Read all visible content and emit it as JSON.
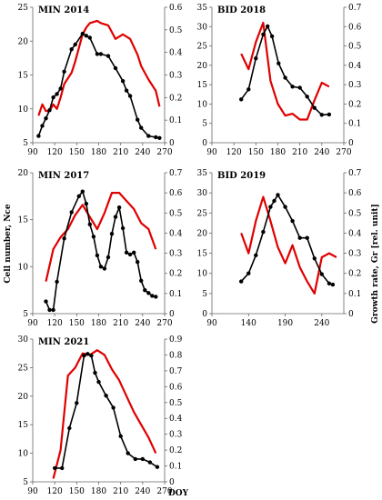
{
  "figure": {
    "y_left_label": "Cell number, Nce",
    "y_right_label": "Growth rate, Gr [rel. unit]",
    "x_label": "DOY"
  },
  "colors": {
    "cell_number": "#000000",
    "growth_rate": "#e00000"
  },
  "chart_data": [
    {
      "type": "line",
      "title": "MIN 2014",
      "xlim": [
        90,
        270
      ],
      "xticks": [
        90,
        120,
        150,
        180,
        210,
        240,
        270
      ],
      "ylim_left": [
        5,
        25
      ],
      "yticks_left": [
        5,
        10,
        15,
        20,
        25
      ],
      "ylim_right": [
        0,
        0.6
      ],
      "yticks_right": [
        0,
        0.1,
        0.2,
        0.3,
        0.4,
        0.5,
        0.6
      ],
      "series": [
        {
          "axis": "left",
          "markers": true,
          "x": [
            98,
            103,
            108,
            113,
            118,
            123,
            128,
            133,
            143,
            148,
            158,
            163,
            168,
            178,
            183,
            193,
            203,
            213,
            218,
            223,
            233,
            238,
            248,
            258,
            263
          ],
          "y": [
            6.0,
            7.5,
            8.6,
            9.8,
            11.7,
            12.2,
            13.0,
            15.5,
            18.8,
            19.5,
            21.1,
            20.8,
            20.5,
            18.1,
            18.1,
            17.8,
            16.0,
            14.1,
            12.7,
            11.9,
            8.4,
            7.2,
            6.0,
            5.8,
            5.7
          ]
        },
        {
          "axis": "right",
          "markers": false,
          "x": [
            98,
            103,
            108,
            113,
            118,
            123,
            128,
            133,
            143,
            148,
            158,
            163,
            168,
            178,
            183,
            193,
            203,
            213,
            218,
            223,
            233,
            238,
            248,
            258,
            263
          ],
          "y": [
            0.12,
            0.17,
            0.14,
            0.14,
            0.17,
            0.15,
            0.2,
            0.26,
            0.31,
            0.36,
            0.48,
            0.51,
            0.53,
            0.54,
            0.53,
            0.52,
            0.46,
            0.48,
            0.47,
            0.46,
            0.39,
            0.34,
            0.28,
            0.23,
            0.16
          ]
        }
      ]
    },
    {
      "type": "line",
      "title": "BID 2018",
      "xlim": [
        90,
        270
      ],
      "xticks": [
        90,
        120,
        150,
        180,
        210,
        240,
        270
      ],
      "ylim_left": [
        0,
        35
      ],
      "yticks_left": [
        0,
        5,
        10,
        15,
        20,
        25,
        30,
        35
      ],
      "ylim_right": [
        0,
        0.7
      ],
      "yticks_right": [
        0,
        0.1,
        0.2,
        0.3,
        0.4,
        0.5,
        0.6,
        0.7
      ],
      "series": [
        {
          "axis": "left",
          "markers": true,
          "x": [
            130,
            140,
            150,
            160,
            166,
            172,
            181,
            190,
            200,
            210,
            220,
            230,
            240,
            250
          ],
          "y": [
            11.2,
            13.8,
            21.8,
            28.0,
            30.1,
            27.5,
            20.5,
            16.8,
            14.5,
            14.2,
            11.9,
            9.0,
            7.2,
            7.3
          ]
        },
        {
          "axis": "right",
          "markers": false,
          "x": [
            130,
            140,
            150,
            160,
            170,
            180,
            190,
            200,
            210,
            220,
            230,
            240,
            250
          ],
          "y": [
            0.46,
            0.38,
            0.52,
            0.62,
            0.32,
            0.2,
            0.14,
            0.15,
            0.12,
            0.12,
            0.22,
            0.31,
            0.29
          ]
        }
      ]
    },
    {
      "type": "line",
      "title": "MIN 2017",
      "xlim": [
        90,
        270
      ],
      "xticks": [
        90,
        120,
        150,
        180,
        210,
        240,
        270
      ],
      "ylim_left": [
        5,
        20
      ],
      "yticks_left": [
        5,
        10,
        15,
        20
      ],
      "ylim_right": [
        0,
        0.7
      ],
      "yticks_right": [
        0,
        0.1,
        0.2,
        0.3,
        0.4,
        0.5,
        0.6,
        0.7
      ],
      "series": [
        {
          "axis": "left",
          "markers": true,
          "x": [
            108,
            113,
            118,
            123,
            133,
            143,
            153,
            158,
            163,
            168,
            173,
            178,
            183,
            188,
            193,
            198,
            203,
            208,
            213,
            218,
            223,
            228,
            233,
            238,
            243,
            248,
            253,
            258
          ],
          "y": [
            6.3,
            5.4,
            5.4,
            8.4,
            13.0,
            15.8,
            17.5,
            18.0,
            16.7,
            14.5,
            13.2,
            11.2,
            10.0,
            9.8,
            11.0,
            13.5,
            15.3,
            16.3,
            14.1,
            11.5,
            11.3,
            11.5,
            10.5,
            8.5,
            7.5,
            7.2,
            6.9,
            6.8
          ]
        },
        {
          "axis": "right",
          "markers": false,
          "x": [
            108,
            118,
            128,
            138,
            148,
            158,
            168,
            178,
            188,
            198,
            208,
            218,
            228,
            238,
            248,
            258
          ],
          "y": [
            0.16,
            0.32,
            0.38,
            0.42,
            0.49,
            0.54,
            0.48,
            0.42,
            0.5,
            0.6,
            0.6,
            0.56,
            0.52,
            0.45,
            0.42,
            0.32
          ]
        }
      ]
    },
    {
      "type": "line",
      "title": "BID 2019",
      "xlim": [
        90,
        270
      ],
      "xticks": [
        90,
        140,
        190,
        240
      ],
      "ylim_left": [
        0,
        35
      ],
      "yticks_left": [
        0,
        5,
        10,
        15,
        20,
        25,
        30,
        35
      ],
      "ylim_right": [
        0,
        0.7
      ],
      "yticks_right": [
        0,
        0.1,
        0.2,
        0.3,
        0.4,
        0.5,
        0.6,
        0.7
      ],
      "series": [
        {
          "axis": "left",
          "markers": true,
          "x": [
            130,
            140,
            150,
            160,
            170,
            175,
            180,
            190,
            200,
            210,
            220,
            230,
            240,
            250,
            255
          ],
          "y": [
            8.0,
            10.0,
            14.5,
            20.3,
            26.5,
            28.0,
            29.5,
            26.5,
            23.0,
            18.8,
            18.8,
            13.7,
            9.8,
            7.5,
            7.2
          ]
        },
        {
          "axis": "right",
          "markers": false,
          "x": [
            130,
            140,
            150,
            160,
            170,
            180,
            190,
            200,
            210,
            220,
            230,
            240,
            250,
            260
          ],
          "y": [
            0.4,
            0.3,
            0.46,
            0.58,
            0.46,
            0.33,
            0.25,
            0.34,
            0.23,
            0.16,
            0.1,
            0.28,
            0.3,
            0.28
          ]
        }
      ]
    },
    {
      "type": "line",
      "title": "MIN 2021",
      "xlim": [
        90,
        270
      ],
      "xticks": [
        90,
        120,
        150,
        180,
        210,
        240,
        270
      ],
      "ylim_left": [
        5,
        30
      ],
      "yticks_left": [
        5,
        10,
        15,
        20,
        25,
        30
      ],
      "ylim_right": [
        0,
        0.9
      ],
      "yticks_right": [
        0,
        0.1,
        0.2,
        0.3,
        0.4,
        0.5,
        0.6,
        0.7,
        0.8,
        0.9
      ],
      "series": [
        {
          "axis": "left",
          "markers": true,
          "x": [
            120,
            130,
            140,
            150,
            160,
            165,
            170,
            175,
            180,
            190,
            200,
            210,
            220,
            230,
            240,
            250,
            260
          ],
          "y": [
            7.4,
            7.4,
            14.4,
            18.8,
            27.1,
            27.4,
            27.1,
            24.1,
            22.5,
            20.1,
            18.0,
            13.0,
            10.0,
            9.0,
            9.0,
            8.4,
            7.6
          ]
        },
        {
          "axis": "right",
          "markers": false,
          "x": [
            118,
            128,
            138,
            148,
            158,
            168,
            178,
            188,
            198,
            208,
            218,
            228,
            238,
            248,
            258
          ],
          "y": [
            0.02,
            0.2,
            0.67,
            0.72,
            0.81,
            0.8,
            0.83,
            0.8,
            0.71,
            0.64,
            0.54,
            0.44,
            0.36,
            0.28,
            0.18
          ]
        }
      ]
    }
  ]
}
